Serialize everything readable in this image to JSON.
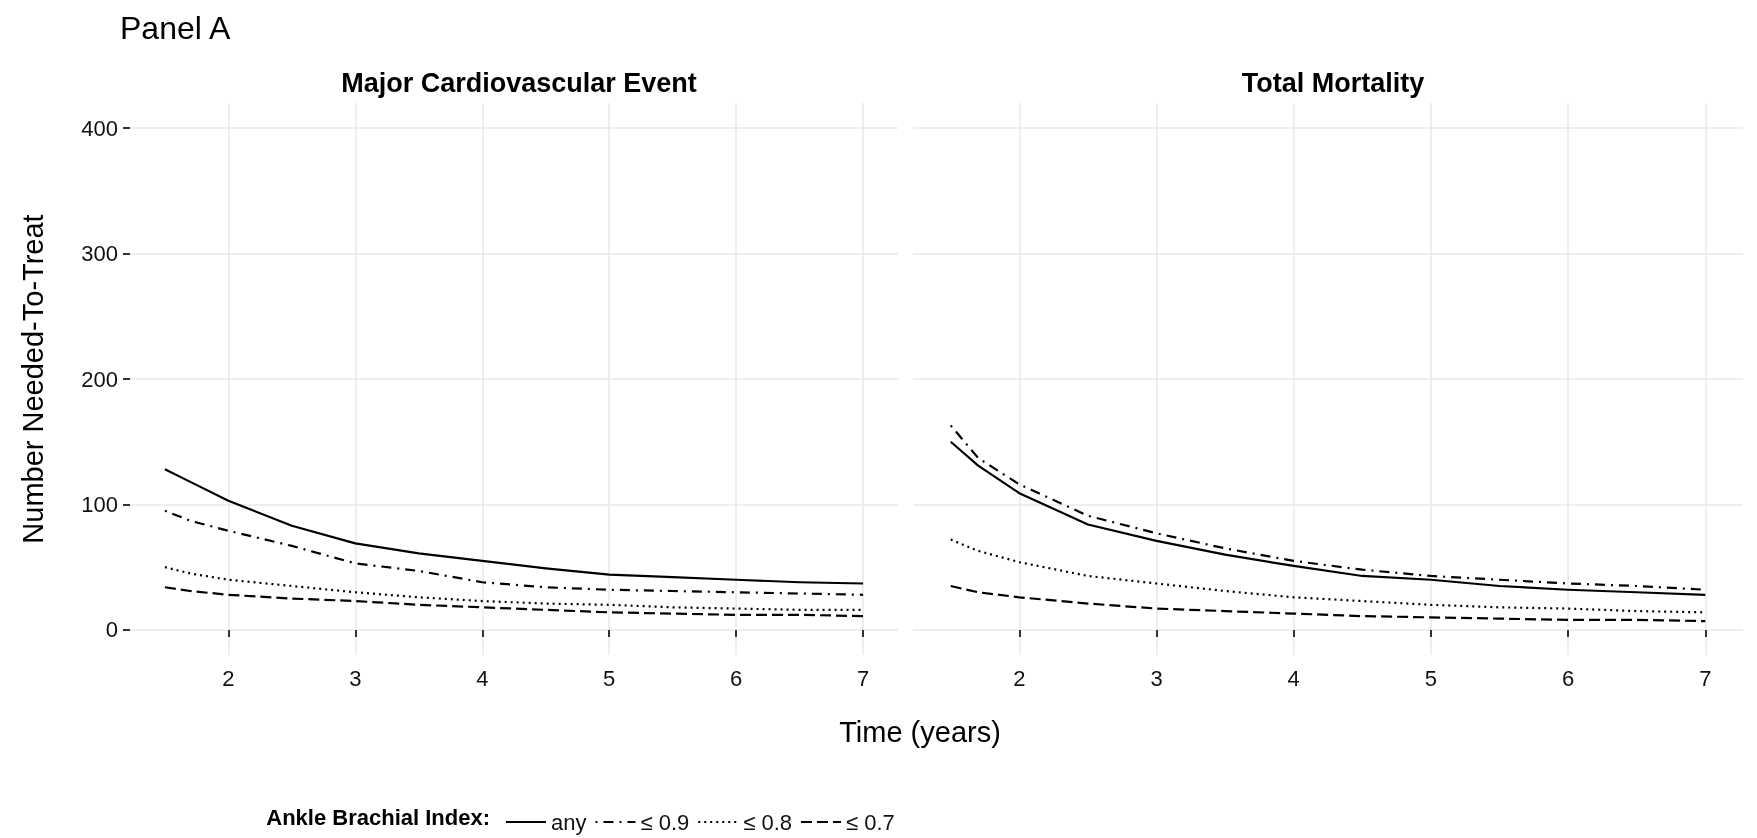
{
  "chart_data": [
    {
      "type": "line",
      "title": "Major Cardiovascular Event",
      "annotations": [
        "Panel A"
      ],
      "xlabel": "Time (years)",
      "ylabel": "Number Needed-To-Treat",
      "legend_title": "Ankle Brachial Index:",
      "legend": "bottom",
      "grid": true,
      "marker": "none",
      "x": [
        1.5,
        1.7,
        2,
        2.5,
        3,
        3.5,
        4,
        4.5,
        5,
        5.5,
        6,
        6.5,
        7
      ],
      "xlim": [
        1.225,
        7.275
      ],
      "xticks": [
        2,
        3,
        4,
        5,
        6,
        7
      ],
      "ylim": [
        -20,
        420
      ],
      "yticks": [
        0,
        100,
        200,
        300,
        400
      ],
      "series": [
        {
          "name": "any",
          "color": "#000000",
          "line_style": "solid",
          "values": [
            128,
            118,
            103,
            83,
            69,
            61,
            55,
            49,
            44,
            42,
            40,
            38,
            37
          ]
        },
        {
          "name": "≤ 0.9",
          "color": "#000000",
          "line_style": "dashdot",
          "values": [
            95,
            87,
            79,
            67,
            53,
            47,
            38,
            34,
            32,
            31,
            30,
            29,
            28
          ]
        },
        {
          "name": "≤ 0.8",
          "color": "#000000",
          "line_style": "dotted",
          "values": [
            50,
            45,
            40,
            35,
            30,
            26,
            23,
            21,
            20,
            18,
            17,
            16,
            16
          ]
        },
        {
          "name": "≤ 0.7",
          "color": "#000000",
          "line_style": "dashed",
          "values": [
            34,
            31,
            28,
            25,
            23,
            20,
            18,
            16,
            14,
            13,
            12,
            12,
            11
          ]
        }
      ]
    },
    {
      "type": "line",
      "title": "Total Mortality",
      "grid": true,
      "marker": "none",
      "tick_labels": "x",
      "x": [
        1.5,
        1.7,
        2,
        2.5,
        3,
        3.5,
        4,
        4.5,
        5,
        5.5,
        6,
        6.5,
        7
      ],
      "xlim": [
        1.225,
        7.275
      ],
      "xticks": [
        2,
        3,
        4,
        5,
        6,
        7
      ],
      "ylim": [
        -20,
        420
      ],
      "yticks": [
        0,
        100,
        200,
        300,
        400
      ],
      "series": [
        {
          "color": "#000000",
          "line_style": "solid",
          "values": [
            150,
            131,
            109,
            84,
            71,
            60,
            51,
            43,
            40,
            35,
            32,
            30,
            28
          ]
        },
        {
          "color": "#000000",
          "line_style": "dashdot",
          "values": [
            163,
            137,
            116,
            91,
            77,
            65,
            55,
            48,
            43,
            40,
            37,
            35,
            32
          ]
        },
        {
          "color": "#000000",
          "line_style": "dotted",
          "values": [
            72,
            63,
            54,
            43,
            37,
            31,
            26,
            23,
            20,
            18,
            17,
            15,
            14
          ]
        },
        {
          "color": "#000000",
          "line_style": "dashed",
          "values": [
            35,
            30,
            26,
            21,
            17,
            15,
            13,
            11,
            10,
            9,
            8,
            8,
            7
          ]
        }
      ]
    }
  ]
}
